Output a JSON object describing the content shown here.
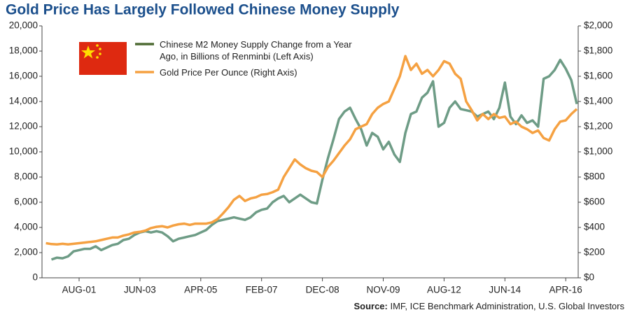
{
  "chart_data": {
    "type": "line",
    "title": "Gold Price Has Largely Followed Chinese Money Supply",
    "source_label": "Source:",
    "source": "IMF, ICE Benchmark Administration, U.S. Global Investors",
    "categories": [
      null,
      null,
      null,
      null,
      null,
      null,
      "AUG-01",
      null,
      null,
      null,
      null,
      null,
      null,
      null,
      null,
      null,
      null,
      "JUN-03",
      null,
      null,
      null,
      null,
      null,
      null,
      null,
      null,
      null,
      null,
      "APR-05",
      null,
      null,
      null,
      null,
      null,
      null,
      null,
      null,
      null,
      null,
      "FEB-07",
      null,
      null,
      null,
      null,
      null,
      null,
      null,
      null,
      null,
      null,
      "DEC-08",
      null,
      null,
      null,
      null,
      null,
      null,
      null,
      null,
      null,
      null,
      "NOV-09",
      null,
      null,
      null,
      null,
      null,
      null,
      null,
      null,
      null,
      null,
      "AUG-12",
      null,
      null,
      null,
      null,
      null,
      null,
      null,
      null,
      null,
      null,
      "JUN-14",
      null,
      null,
      null,
      null,
      null,
      null,
      null,
      null,
      null,
      null,
      "APR-16",
      null,
      null
    ],
    "series": [
      {
        "name": "Chinese M2 Money Supply Change from a Year Ago, in Billions of Renminbi (Left Axis)",
        "color": "#6e9c86",
        "legend_color": "#4f6b34",
        "axis": "y",
        "values": [
          null,
          1450,
          1600,
          1550,
          1700,
          2100,
          2200,
          2300,
          2300,
          2500,
          2200,
          2400,
          2600,
          2700,
          3000,
          3100,
          3400,
          3600,
          3700,
          3600,
          3700,
          3600,
          3300,
          2900,
          3100,
          3200,
          3300,
          3400,
          3600,
          3800,
          4200,
          4500,
          4600,
          4700,
          4800,
          4700,
          4600,
          4800,
          5200,
          5400,
          5500,
          6000,
          6300,
          6500,
          6000,
          6300,
          6600,
          6300,
          6000,
          5900,
          7800,
          9500,
          11000,
          12600,
          13200,
          13500,
          12600,
          11800,
          10500,
          11500,
          11200,
          10200,
          10800,
          9800,
          9200,
          11500,
          13000,
          13200,
          14300,
          14700,
          15600,
          12000,
          12300,
          13500,
          14000,
          13400,
          13300,
          13200,
          12800,
          13000,
          13200,
          12600,
          13500,
          15500,
          12800,
          12200,
          12900,
          12300,
          12500,
          12000,
          15800,
          16000,
          16500,
          17300,
          16600,
          15700,
          13800
        ]
      },
      {
        "name": "Gold Price Per Ounce (Right Axis)",
        "color": "#f5a142",
        "legend_color": "#f5a142",
        "axis": "y2",
        "values": [
          275,
          268,
          265,
          270,
          265,
          270,
          275,
          280,
          285,
          290,
          300,
          310,
          320,
          320,
          335,
          345,
          360,
          365,
          375,
          395,
          405,
          410,
          400,
          415,
          425,
          430,
          420,
          430,
          430,
          430,
          440,
          465,
          510,
          560,
          620,
          650,
          610,
          630,
          640,
          660,
          665,
          680,
          700,
          800,
          870,
          940,
          900,
          870,
          850,
          840,
          800,
          880,
          930,
          990,
          1050,
          1100,
          1180,
          1200,
          1220,
          1300,
          1350,
          1380,
          1400,
          1500,
          1600,
          1760,
          1650,
          1700,
          1620,
          1650,
          1600,
          1650,
          1720,
          1700,
          1620,
          1580,
          1400,
          1330,
          1250,
          1300,
          1260,
          1300,
          1270,
          1280,
          1220,
          1240,
          1200,
          1180,
          1150,
          1170,
          1110,
          1090,
          1180,
          1240,
          1250,
          1300,
          1340
        ]
      }
    ],
    "ylim": [
      0,
      20000
    ],
    "yticks": [
      0,
      {
        "value": 2000,
        "label": "2,000"
      },
      {
        "value": 4000,
        "label": "4,000"
      },
      {
        "value": 6000,
        "label": "6,000"
      },
      {
        "value": 8000,
        "label": "8,000"
      },
      {
        "value": 10000,
        "label": "10,000"
      },
      {
        "value": 12000,
        "label": "12,000"
      },
      {
        "value": 14000,
        "label": "14,000"
      },
      {
        "value": 16000,
        "label": "16,000"
      },
      {
        "value": 18000,
        "label": "18,000"
      },
      {
        "value": 20000,
        "label": "20,000"
      }
    ],
    "y2lim": [
      0,
      2000
    ],
    "y2ticks": [
      {
        "value": 0,
        "label": "$0"
      },
      {
        "value": 200,
        "label": "$200"
      },
      {
        "value": 400,
        "label": "$400"
      },
      {
        "value": 600,
        "label": "$600"
      },
      {
        "value": 800,
        "label": "$800"
      },
      {
        "value": 1000,
        "label": "$1,000"
      },
      {
        "value": 1200,
        "label": "$1,200"
      },
      {
        "value": 1400,
        "label": "$1,400"
      },
      {
        "value": 1600,
        "label": "$1,600"
      },
      {
        "value": 1800,
        "label": "$1,800"
      },
      {
        "value": 2000,
        "label": "$2,000"
      }
    ],
    "grid": false
  }
}
